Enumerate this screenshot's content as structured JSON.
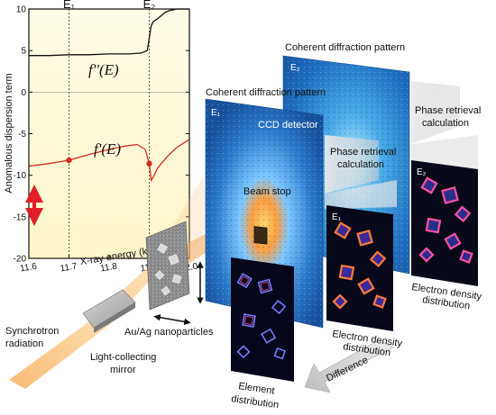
{
  "chart_data": {
    "type": "line",
    "xlabel": "X-ray energy (keV)",
    "ylabel": "Anomalous dispersion term",
    "xlim": [
      11.6,
      12.0
    ],
    "ylim": [
      -20,
      10
    ],
    "x_ticks": [
      "11.6",
      "11.7",
      "11.8",
      "11.9",
      "12.0"
    ],
    "y_ticks": [
      "-20",
      "-15",
      "-10",
      "-5",
      "0",
      "5",
      "10"
    ],
    "edges": [
      {
        "label": "E₁",
        "x": 11.7
      },
      {
        "label": "E₂",
        "x": 11.9
      }
    ],
    "series": [
      {
        "name": "f''(E)",
        "color": "#111111",
        "x": [
          11.6,
          11.65,
          11.7,
          11.75,
          11.8,
          11.85,
          11.88,
          11.895,
          11.9,
          11.905,
          11.91,
          11.92,
          11.93,
          11.94,
          11.95,
          11.97,
          12.0
        ],
        "y": [
          4.4,
          4.4,
          4.5,
          4.5,
          4.6,
          4.6,
          4.7,
          5.0,
          6.5,
          8.0,
          8.5,
          8.8,
          9.2,
          9.6,
          9.8,
          10.0,
          10.0
        ]
      },
      {
        "name": "f'(E)",
        "color": "#d42a1e",
        "x": [
          11.6,
          11.65,
          11.7,
          11.75,
          11.8,
          11.84,
          11.87,
          11.89,
          11.9,
          11.905,
          11.91,
          11.92,
          11.93,
          11.95,
          11.97,
          12.0
        ],
        "y": [
          -8.9,
          -8.6,
          -8.2,
          -7.5,
          -6.9,
          -6.5,
          -6.3,
          -6.9,
          -8.6,
          -10.6,
          -10.2,
          -9.2,
          -8.6,
          -7.5,
          -6.6,
          -5.7
        ]
      }
    ],
    "markers": [
      {
        "x": 11.7,
        "y": -8.2
      },
      {
        "x": 11.9,
        "y": -8.6
      }
    ]
  },
  "curve_labels": {
    "f2": "f''(E)",
    "f1": "f'(E)"
  },
  "labels": {
    "synchrotron": [
      "Synchrotron",
      "radiation"
    ],
    "mirror": [
      "Light-collecting",
      "mirror"
    ],
    "nanoparticles": "Au/Ag nanoparticles",
    "cdp1": "Coherent diffraction pattern",
    "cdp2": "Coherent diffraction pattern",
    "e1_panel": "E₁",
    "e2_panel": "E₂",
    "ccd": "CCD detector",
    "beamstop": "Beam stop",
    "phase1": [
      "Phase retrieval",
      "calculation"
    ],
    "phase2": [
      "Phase retrieval",
      "calculation"
    ],
    "eden1": [
      "Electron density",
      "distribution"
    ],
    "eden2": [
      "Electron density",
      "distribution"
    ],
    "e1_small": "E₁",
    "e2_small": "E₂",
    "difference": "Difference",
    "element": [
      "Element",
      "distribution"
    ]
  },
  "colors": {
    "plot_bg": "#fff9d8",
    "ccd_blue": "#1e6fb5",
    "ccd_glow": "#ffb347",
    "beam": "#f7b55b",
    "density_pink": "#ff4fa3",
    "density_blue": "#5a66ff",
    "arrow_red": "#e01f28"
  }
}
